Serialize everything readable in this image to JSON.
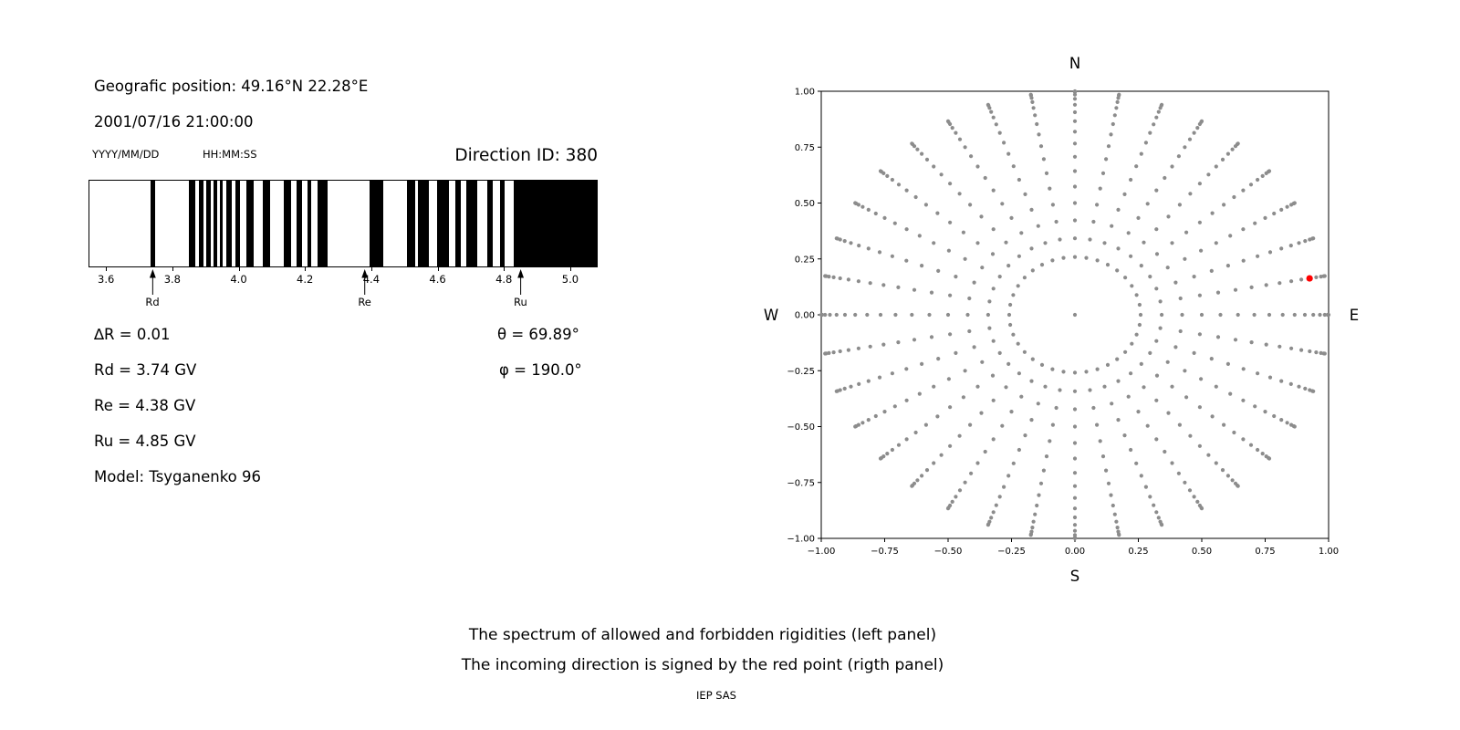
{
  "left": {
    "position_line": "Geografic position: 49.16°N 22.28°E",
    "datetime_line": "2001/07/16 21:00:00",
    "date_format": "YYYY/MM/DD",
    "time_format": "HH:MM:SS",
    "direction_id": "Direction ID: 380",
    "params": {
      "delta_r": "∆R = 0.01",
      "theta": "θ = 69.89°",
      "rd": "Rd = 3.74 GV",
      "phi": "φ = 190.0°",
      "re": "Re = 4.38 GV",
      "ru": "Ru = 4.85 GV",
      "model": "Model: Tsyganenko 96"
    }
  },
  "compass": {
    "n": "N",
    "s": "S",
    "e": "E",
    "w": "W"
  },
  "caption": {
    "line1": "The spectrum of allowed and forbidden rigidities (left panel)",
    "line2": "The incoming direction is signed by the red point (rigth panel)",
    "credit": "IEP SAS"
  },
  "colors": {
    "allowed_band": "#000000",
    "dot_gray": "#8c8c8c",
    "red_point": "#ff0000",
    "axis": "#000000"
  },
  "chart_data": [
    {
      "type": "bar",
      "panel": "left",
      "description": "Barcode spectrum of allowed (black) and forbidden (white) rigidities in GV",
      "x_range": [
        3.55,
        5.08
      ],
      "x_ticks": [
        3.6,
        3.8,
        4.0,
        4.2,
        4.4,
        4.6,
        4.8,
        5.0
      ],
      "x_tick_labels": [
        "3.6",
        "3.8",
        "4.0",
        "4.2",
        "4.4",
        "4.6",
        "4.8",
        "5.0"
      ],
      "allowed_bands_gv": [
        [
          3.735,
          3.748
        ],
        [
          3.849,
          3.868
        ],
        [
          3.88,
          3.893
        ],
        [
          3.903,
          3.915
        ],
        [
          3.925,
          3.934
        ],
        [
          3.944,
          3.953
        ],
        [
          3.963,
          3.978
        ],
        [
          3.991,
          4.004
        ],
        [
          4.024,
          4.045
        ],
        [
          4.073,
          4.094
        ],
        [
          4.136,
          4.157
        ],
        [
          4.174,
          4.19
        ],
        [
          4.207,
          4.22
        ],
        [
          4.237,
          4.267
        ],
        [
          4.394,
          4.437
        ],
        [
          4.509,
          4.533
        ],
        [
          4.54,
          4.574
        ],
        [
          4.599,
          4.634
        ],
        [
          4.654,
          4.669
        ],
        [
          4.687,
          4.719
        ],
        [
          4.75,
          4.765
        ],
        [
          4.789,
          4.801
        ],
        [
          4.83,
          5.08
        ]
      ],
      "cutoffs": [
        {
          "label": "Rd",
          "value_gv": 3.74
        },
        {
          "label": "Re",
          "value_gv": 4.38
        },
        {
          "label": "Ru",
          "value_gv": 4.85
        }
      ]
    },
    {
      "type": "scatter",
      "panel": "right",
      "description": "Grid of incoming directions on unit circle; red point marks the incoming direction",
      "xlim": [
        -1.0,
        1.0
      ],
      "ylim": [
        -1.0,
        1.0
      ],
      "x_ticks": [
        -1.0,
        -0.75,
        -0.5,
        -0.25,
        0.0,
        0.25,
        0.5,
        0.75,
        1.0
      ],
      "x_tick_labels": [
        "−1.00",
        "−0.75",
        "−0.50",
        "−0.25",
        "0.00",
        "0.25",
        "0.50",
        "0.75",
        "1.00"
      ],
      "y_ticks": [
        -1.0,
        -0.75,
        -0.5,
        -0.25,
        0.0,
        0.25,
        0.5,
        0.75,
        1.0
      ],
      "y_tick_labels": [
        "−1.00",
        "−0.75",
        "−0.50",
        "−0.25",
        "0.00",
        "0.25",
        "0.50",
        "0.75",
        "1.00"
      ],
      "grid_on": false,
      "direction_grid": {
        "azimuth_deg_start": 0,
        "azimuth_deg_step": 10,
        "azimuth_count": 36,
        "zenith_deg_start": 15,
        "zenith_deg_step": 5,
        "zenith_deg_end": 90,
        "radius_rule": "sin(zenith)",
        "includes_center_point": true
      },
      "red_point": {
        "x": 0.925,
        "y": 0.163,
        "theta_deg": 69.89,
        "phi_deg": 190.0
      }
    }
  ]
}
